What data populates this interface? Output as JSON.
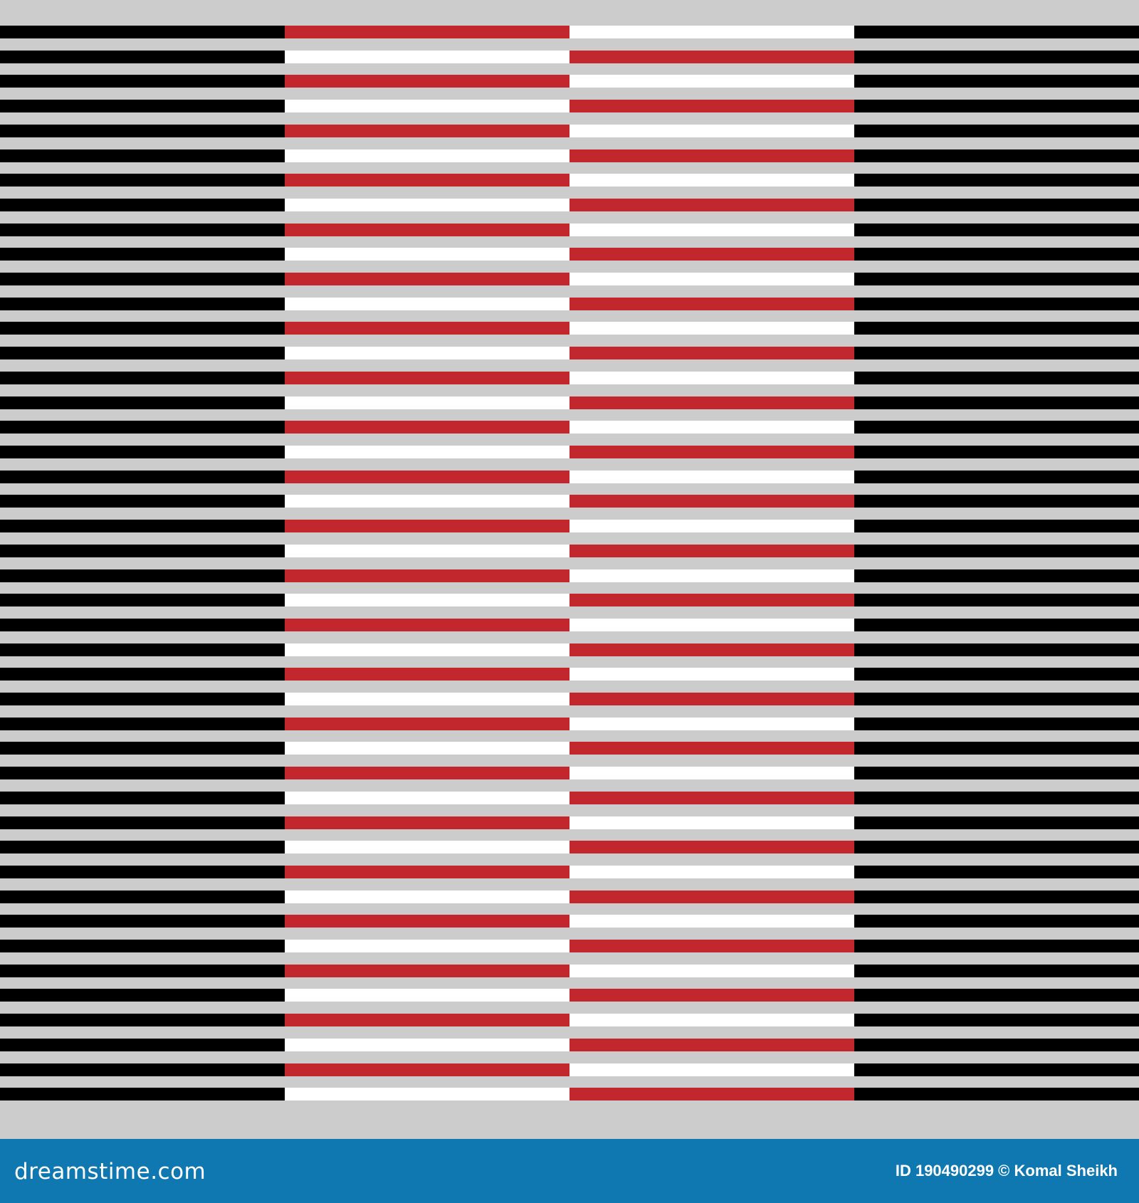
{
  "pattern": {
    "stripe_count": 44,
    "background_color": "#cccccc",
    "columns": [
      {
        "name": "black",
        "colors": [
          "#000000",
          "#000000"
        ]
      },
      {
        "name": "red-white",
        "colors": [
          "#c1272d",
          "#ffffff"
        ]
      },
      {
        "name": "white-red",
        "colors": [
          "#ffffff",
          "#c1272d"
        ]
      },
      {
        "name": "black",
        "colors": [
          "#000000",
          "#000000"
        ]
      }
    ]
  },
  "footer": {
    "logo": "dreamstime.com",
    "credit": "ID 190490299 © Komal Sheikh",
    "background_color": "#0f78b0"
  }
}
